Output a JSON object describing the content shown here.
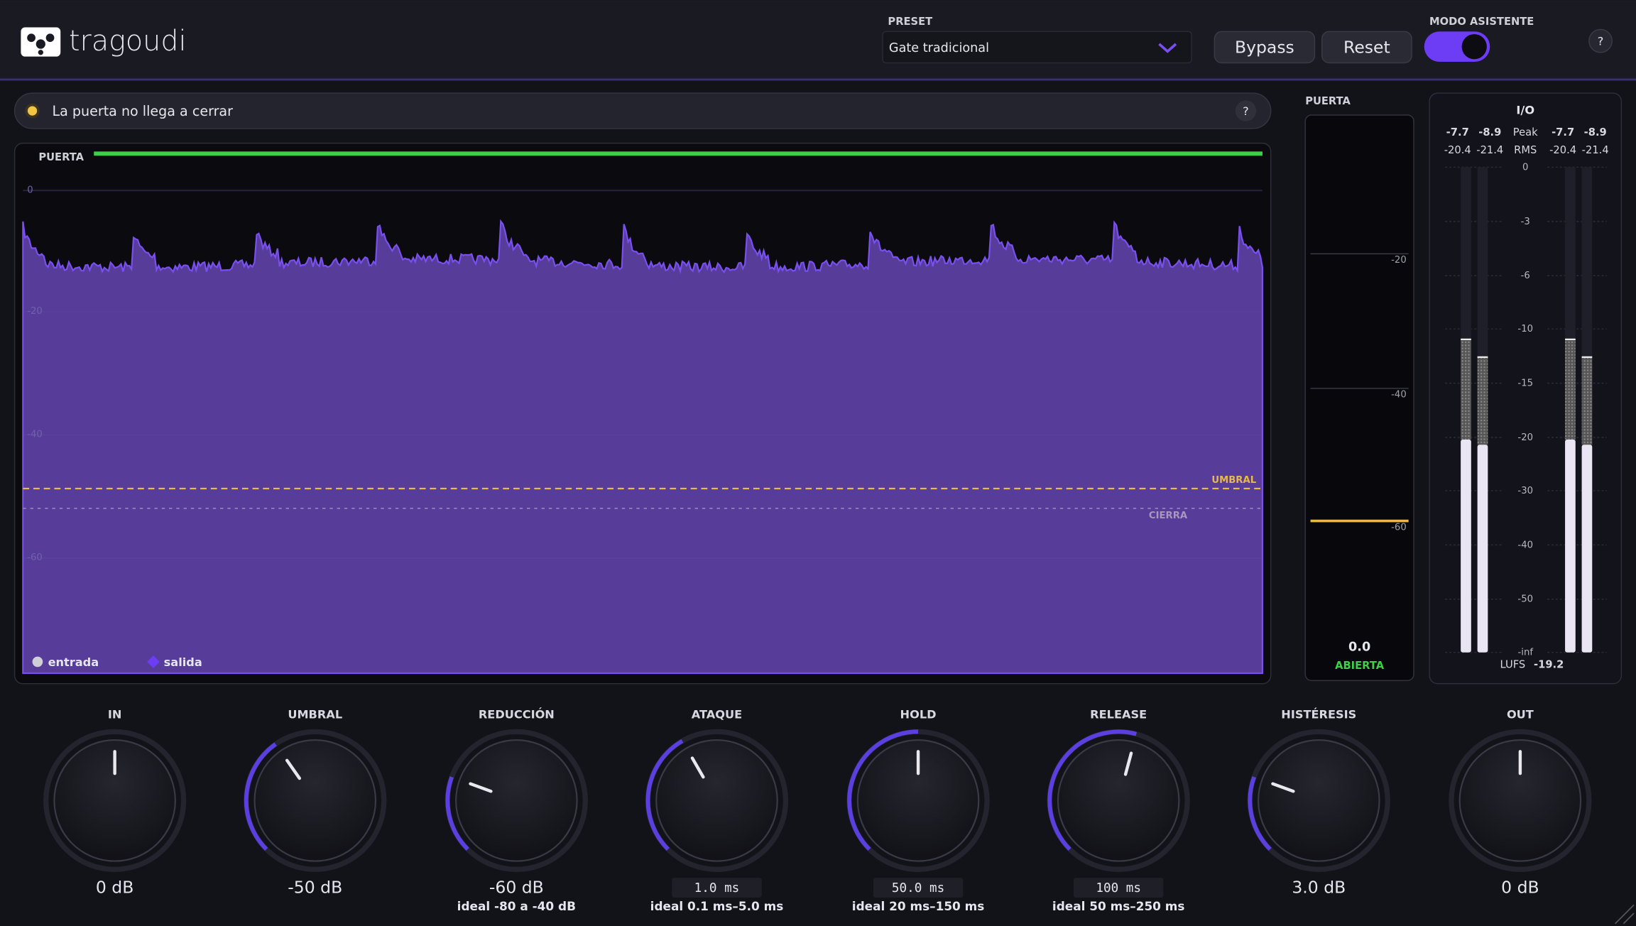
{
  "header": {
    "logo": "tragoudi",
    "preset_label": "PRESET",
    "preset": "Gate tradicional",
    "bypass": "Bypass",
    "reset": "Reset",
    "assistant_label": "MODO ASISTENTE",
    "help": "?"
  },
  "status": {
    "message": "La puerta no llega a cerrar",
    "help": "?"
  },
  "graph": {
    "label": "PUERTA",
    "y_labels": [
      "0",
      "-20",
      "-40",
      "-60"
    ],
    "threshold_label": "UMBRAL",
    "close_label": "CIERRA",
    "legend": [
      "entrada",
      "salida"
    ]
  },
  "gate_meter": {
    "label": "PUERTA",
    "ticks": [
      "-20",
      "-40",
      "-60"
    ],
    "value": "0.0",
    "state": "ABIERTA"
  },
  "io": {
    "title": "I/O",
    "peak": {
      "label": "Peak",
      "in": [
        "-7.7",
        "-8.9"
      ],
      "out": [
        "-7.7",
        "-8.9"
      ]
    },
    "rms": {
      "label": "RMS",
      "in": [
        "-20.4",
        "-21.4"
      ],
      "out": [
        "-20.4",
        "-21.4"
      ]
    },
    "scale": [
      "0",
      "-3",
      "-6",
      "-10",
      "-15",
      "-20",
      "-30",
      "-40",
      "-50",
      "-inf"
    ],
    "lufs_label": "LUFS",
    "lufs": "-19.2"
  },
  "knobs": [
    {
      "label": "IN",
      "value": "0 dB"
    },
    {
      "label": "UMBRAL",
      "value": "-50 dB"
    },
    {
      "label": "REDUCCIÓN",
      "value": "-60 dB",
      "hint": "ideal -80 a -40 dB"
    },
    {
      "label": "ATAQUE",
      "value": "1.0 ms",
      "hint": "ideal 0.1 ms–5.0 ms"
    },
    {
      "label": "HOLD",
      "value": "50.0 ms",
      "hint": "ideal 20 ms–150 ms"
    },
    {
      "label": "RELEASE",
      "value": "100 ms",
      "hint": "ideal 50 ms–250 ms"
    },
    {
      "label": "HISTÉRESIS",
      "value": "3.0 dB"
    },
    {
      "label": "OUT",
      "value": "0 dB"
    }
  ]
}
